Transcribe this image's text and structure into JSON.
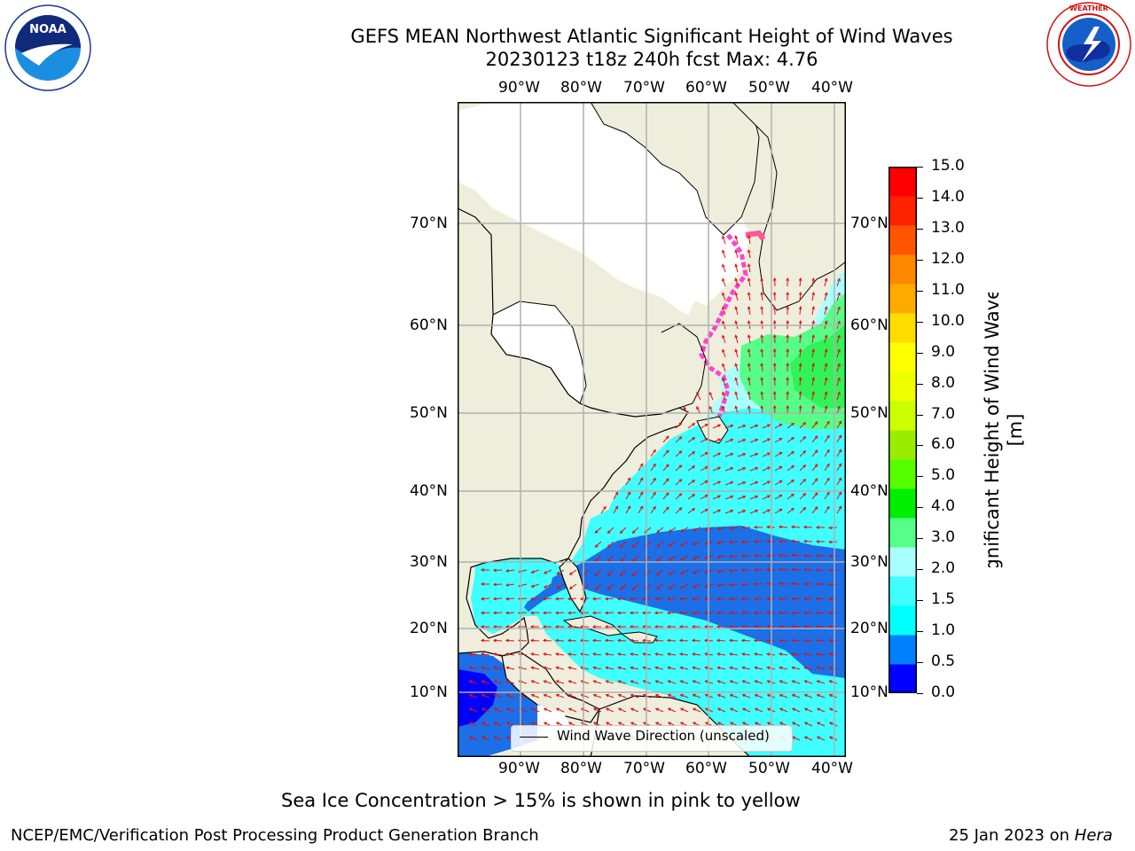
{
  "header": {
    "title_line1": "GEFS MEAN Northwest Atlantic Significant Height of Wind Waves",
    "title_line2": "20230123 t18z 240h fcst   Max: 4.76"
  },
  "logos": {
    "noaa_text": "NOAA",
    "noaa_ring_text": "NATIONAL OCEANIC AND ATMOSPHERIC ADMINISTRATION · U.S. DEPARTMENT OF COMMERCE",
    "nws_ring_text": "NATIONAL WEATHER SERVICE"
  },
  "map": {
    "lon_labels": [
      "90°W",
      "80°W",
      "70°W",
      "60°W",
      "50°W",
      "40°W"
    ],
    "lat_labels": [
      "70°N",
      "60°N",
      "50°N",
      "40°N",
      "30°N",
      "20°N",
      "10°N"
    ],
    "legend_label": "Wind Wave Direction (unscaled)"
  },
  "colorbar": {
    "title": "Significant Height of Wind Waves [m]",
    "ticks": [
      "15.0",
      "14.0",
      "13.0",
      "12.0",
      "11.0",
      "10.0",
      "9.0",
      "8.0",
      "7.0",
      "6.0",
      "5.0",
      "4.0",
      "3.0",
      "2.0",
      "1.5",
      "1.0",
      "0.5",
      "0.0"
    ],
    "colors": [
      "#0000ff",
      "#0080ff",
      "#00ffff",
      "#40ffff",
      "#aaffff",
      "#55ff88",
      "#00ee00",
      "#55ff00",
      "#99ee00",
      "#ccff00",
      "#eeff00",
      "#ffff00",
      "#ffdd00",
      "#ffaa00",
      "#ff8800",
      "#ff5500",
      "#ff2200",
      "#ff0000"
    ]
  },
  "caption": "Sea Ice Concentration > 15% is shown in pink to yellow",
  "footer": {
    "left": "NCEP/EMC/Verification Post Processing Product Generation Branch",
    "right_date": "25 Jan 2023 on ",
    "right_host": "Hera"
  }
}
